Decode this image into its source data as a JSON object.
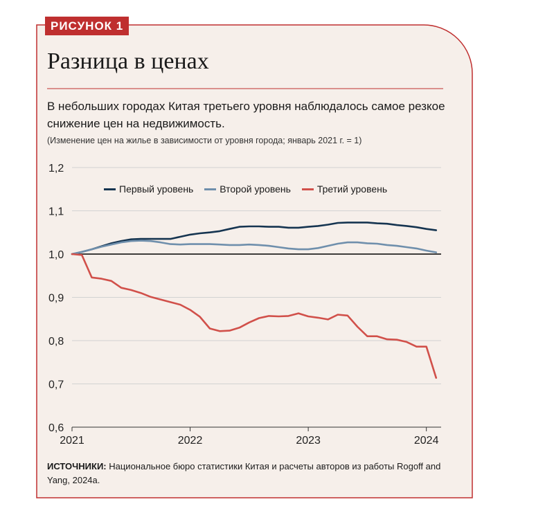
{
  "figure_tag": "РИСУНОК 1",
  "title": "Разница в ценах",
  "subtitle": "В небольших городах Китая третьего уровня наблюдалось самое резкое снижение цен на недвижимость.",
  "note": "(Изменение цен на жилье в зависимости от уровня города; январь 2021 г. = 1)",
  "source": {
    "label": "ИСТОЧНИКИ:",
    "text": " Национальное бюро статистики Китая и расчеты авторов из работы Rogoff and Yang, 2024a."
  },
  "colors": {
    "accent": "#bf2f2f",
    "background": "#f6efea",
    "tier1": "#153450",
    "tier2": "#6f8fac",
    "tier3": "#d1504a",
    "baseline": "#000000",
    "grid": "#d2d2d2"
  },
  "chart_data": {
    "type": "line",
    "title": "Разница в ценах",
    "xlabel": "",
    "ylabel": "",
    "ylim": [
      0.6,
      1.2
    ],
    "xlim": [
      2021.0,
      2024.125
    ],
    "y_ticks": [
      "0,6",
      "0,7",
      "0,8",
      "0,9",
      "1,0",
      "1,1",
      "1,2"
    ],
    "x_ticks": [
      "2021",
      "2022",
      "2023",
      "2024"
    ],
    "grid": true,
    "legend_position": "top",
    "reference_line": 1.0,
    "x": [
      2021.0,
      2021.083,
      2021.167,
      2021.25,
      2021.333,
      2021.417,
      2021.5,
      2021.583,
      2021.667,
      2021.75,
      2021.833,
      2021.917,
      2022.0,
      2022.083,
      2022.167,
      2022.25,
      2022.333,
      2022.417,
      2022.5,
      2022.583,
      2022.667,
      2022.75,
      2022.833,
      2022.917,
      2023.0,
      2023.083,
      2023.167,
      2023.25,
      2023.333,
      2023.417,
      2023.5,
      2023.583,
      2023.667,
      2023.75,
      2023.833,
      2023.917,
      2024.0,
      2024.083
    ],
    "series": [
      {
        "name": "Первый уровень",
        "color": "#153450",
        "values": [
          1.0,
          1.005,
          1.011,
          1.018,
          1.025,
          1.03,
          1.034,
          1.035,
          1.035,
          1.035,
          1.035,
          1.04,
          1.045,
          1.048,
          1.05,
          1.053,
          1.058,
          1.063,
          1.064,
          1.064,
          1.063,
          1.063,
          1.061,
          1.061,
          1.063,
          1.065,
          1.068,
          1.072,
          1.073,
          1.073,
          1.073,
          1.071,
          1.07,
          1.067,
          1.065,
          1.062,
          1.058,
          1.055
        ]
      },
      {
        "name": "Второй уровень",
        "color": "#6f8fac",
        "values": [
          1.0,
          1.005,
          1.011,
          1.017,
          1.022,
          1.027,
          1.03,
          1.031,
          1.03,
          1.027,
          1.023,
          1.022,
          1.023,
          1.023,
          1.023,
          1.022,
          1.021,
          1.021,
          1.022,
          1.021,
          1.019,
          1.016,
          1.013,
          1.011,
          1.011,
          1.014,
          1.019,
          1.024,
          1.027,
          1.027,
          1.025,
          1.024,
          1.021,
          1.019,
          1.016,
          1.013,
          1.008,
          1.004
        ]
      },
      {
        "name": "Третий уровень",
        "color": "#d1504a",
        "values": [
          1.0,
          0.998,
          0.946,
          0.943,
          0.938,
          0.922,
          0.917,
          0.91,
          0.901,
          0.895,
          0.889,
          0.883,
          0.871,
          0.855,
          0.828,
          0.822,
          0.823,
          0.83,
          0.842,
          0.852,
          0.857,
          0.856,
          0.857,
          0.863,
          0.856,
          0.853,
          0.849,
          0.86,
          0.858,
          0.832,
          0.81,
          0.81,
          0.803,
          0.802,
          0.797,
          0.786,
          0.786,
          0.714
        ]
      }
    ]
  }
}
